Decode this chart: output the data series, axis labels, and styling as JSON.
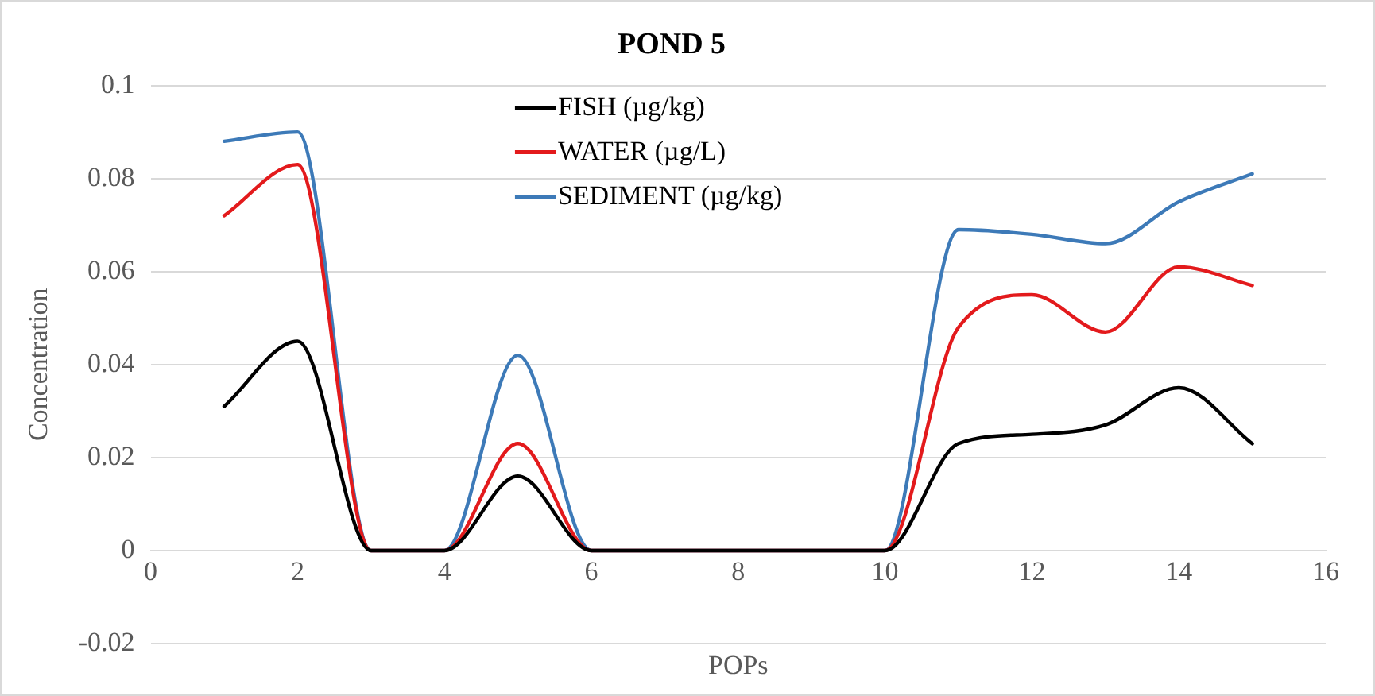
{
  "chart_data": {
    "type": "line",
    "title": "POND 5",
    "xlabel": "POPs",
    "ylabel": "Concentration",
    "x": [
      1,
      2,
      3,
      4,
      5,
      6,
      7,
      8,
      9,
      10,
      11,
      12,
      13,
      14,
      15
    ],
    "series": [
      {
        "name": "FISH (µg/kg)",
        "color": "#000000",
        "values": [
          0.031,
          0.045,
          0,
          0,
          0.016,
          0,
          0,
          0,
          0,
          0,
          0.023,
          0.025,
          0.027,
          0.035,
          0.023
        ]
      },
      {
        "name": "WATER (µg/L)",
        "color": "#e31a1c",
        "values": [
          0.072,
          0.083,
          0,
          0,
          0.023,
          0,
          0,
          0,
          0,
          0,
          0.048,
          0.055,
          0.047,
          0.061,
          0.057
        ]
      },
      {
        "name": "SEDIMENT (µg/kg)",
        "color": "#3d7ab8",
        "values": [
          0.088,
          0.09,
          0,
          0,
          0.042,
          0,
          0,
          0,
          0,
          0,
          0.069,
          0.068,
          0.066,
          0.075,
          0.081
        ]
      }
    ],
    "xlim": [
      0,
      16
    ],
    "xticks": [
      0,
      2,
      4,
      6,
      8,
      10,
      12,
      14,
      16
    ],
    "ylim": [
      -0.02,
      0.1
    ],
    "yticks": [
      -0.02,
      0,
      0.02,
      0.04,
      0.06,
      0.08,
      0.1
    ],
    "grid": "y",
    "legend": "top",
    "marker": "none",
    "line_style": "solid"
  }
}
